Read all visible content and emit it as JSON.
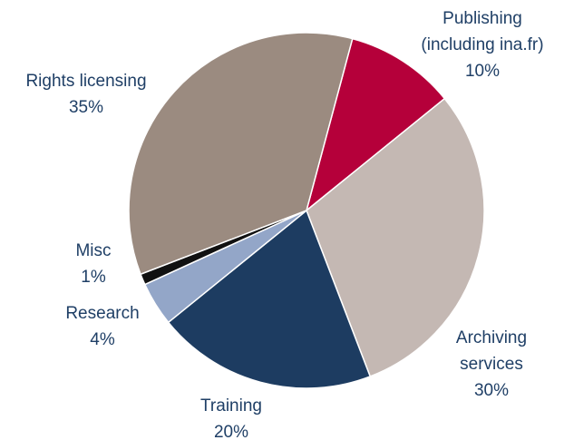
{
  "chart_data": {
    "type": "pie",
    "categories": [
      "Publishing (including ina.fr)",
      "Archiving services",
      "Training",
      "Research",
      "Misc",
      "Rights licensing"
    ],
    "values": [
      10,
      30,
      20,
      4,
      1,
      35
    ],
    "value_labels": [
      "10%",
      "30%",
      "20%",
      "4%",
      "1%",
      "35%"
    ],
    "colors": [
      "#b5003a",
      "#c4b8b3",
      "#1d3c61",
      "#93a6c8",
      "#111111",
      "#9b8b80"
    ]
  }
}
